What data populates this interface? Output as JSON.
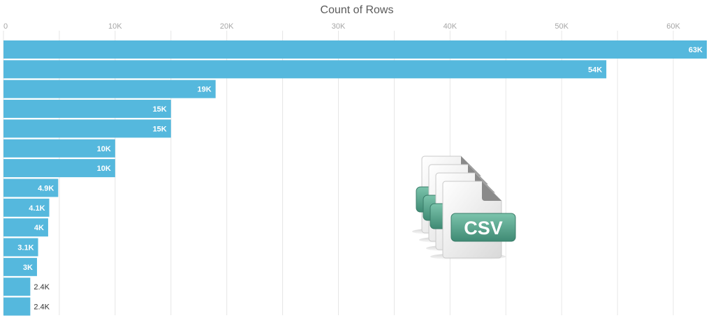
{
  "chart_data": {
    "type": "bar",
    "orientation": "horizontal",
    "title": "Count of Rows",
    "xlabel": "",
    "ylabel": "",
    "xlim": [
      0,
      63000
    ],
    "tick_values": [
      0,
      10000,
      20000,
      30000,
      40000,
      50000,
      60000
    ],
    "tick_labels": [
      "0",
      "10K",
      "20K",
      "30K",
      "40K",
      "50K",
      "60K"
    ],
    "grid": true,
    "values": [
      63000,
      54000,
      19000,
      15000,
      15000,
      10000,
      10000,
      4900,
      4100,
      4000,
      3100,
      3000,
      2400,
      2400
    ],
    "data_labels": [
      "63K",
      "54K",
      "19K",
      "15K",
      "15K",
      "10K",
      "10K",
      "4.9K",
      "4.1K",
      "4K",
      "3.1K",
      "3K",
      "2.4K",
      "2.4K"
    ],
    "bar_color": "#55b8dd"
  },
  "overlay_icon": {
    "name": "csv-files-icon",
    "label": "CSV",
    "color": "#4f9c86"
  }
}
